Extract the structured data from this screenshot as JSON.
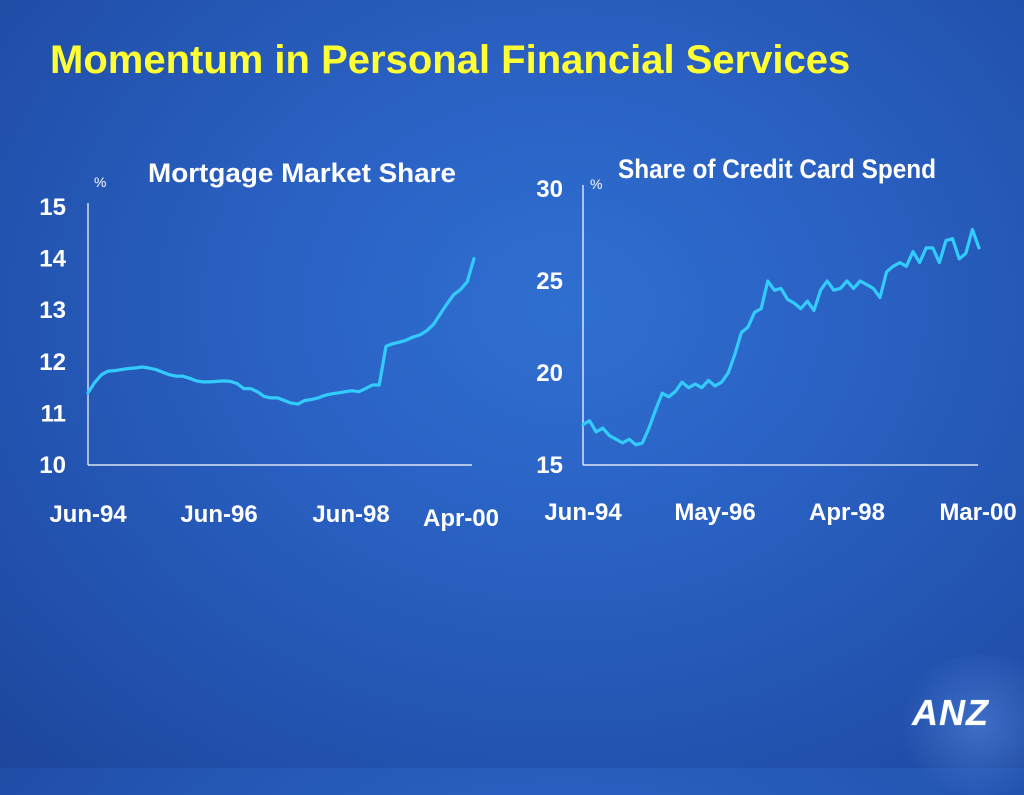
{
  "page": {
    "title": "Momentum in Personal Financial Services",
    "logo": "ANZ"
  },
  "colors": {
    "title": "#ffff33",
    "line": "#33ccff",
    "axis": "#ffffff",
    "text": "#ffffff"
  },
  "chart_data": [
    {
      "type": "line",
      "title": "Mortgage Market Share",
      "ylabel": "%",
      "ylim": [
        10,
        15
      ],
      "yticks": [
        "10",
        "11",
        "12",
        "13",
        "14",
        "15"
      ],
      "xticks": [
        "Jun-94",
        "Jun-96",
        "Jun-98",
        "Apr-00"
      ],
      "series": [
        {
          "values": [
            11.4,
            11.6,
            11.75,
            11.82,
            11.83,
            11.85,
            11.87,
            11.88,
            11.9,
            11.88,
            11.85,
            11.8,
            11.75,
            11.72,
            11.72,
            11.68,
            11.63,
            11.61,
            11.61,
            11.62,
            11.63,
            11.62,
            11.58,
            11.48,
            11.48,
            11.42,
            11.33,
            11.3,
            11.3,
            11.25,
            11.2,
            11.18,
            11.25,
            11.27,
            11.3,
            11.35,
            11.38,
            11.4,
            11.42,
            11.44,
            11.42,
            11.48,
            11.55,
            11.55,
            12.3,
            12.35,
            12.38,
            12.42,
            12.48,
            12.52,
            12.6,
            12.72,
            12.92,
            13.12,
            13.3,
            13.4,
            13.55,
            14.0
          ]
        }
      ]
    },
    {
      "type": "line",
      "title": "Share of Credit Card Spend",
      "ylabel": "%",
      "ylim": [
        15,
        30
      ],
      "yticks": [
        "15",
        "20",
        "25",
        "30"
      ],
      "xticks": [
        "Jun-94",
        "May-96",
        "Apr-98",
        "Mar-00"
      ],
      "series": [
        {
          "values": [
            17.2,
            17.4,
            16.8,
            17.0,
            16.6,
            16.4,
            16.2,
            16.4,
            16.1,
            16.2,
            17.0,
            18.0,
            18.9,
            18.7,
            19.0,
            19.5,
            19.2,
            19.4,
            19.2,
            19.6,
            19.3,
            19.5,
            20.0,
            21.0,
            22.2,
            22.5,
            23.3,
            23.5,
            25.0,
            24.5,
            24.6,
            24.0,
            23.8,
            23.5,
            23.9,
            23.4,
            24.5,
            25.0,
            24.5,
            24.6,
            25.0,
            24.6,
            25.0,
            24.8,
            24.6,
            24.1,
            25.5,
            25.8,
            26.0,
            25.8,
            26.6,
            26.0,
            26.8,
            26.8,
            26.0,
            27.2,
            27.3,
            26.2,
            26.5,
            27.8,
            26.8
          ]
        }
      ]
    }
  ]
}
